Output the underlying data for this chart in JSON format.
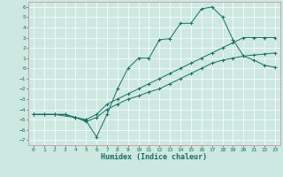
{
  "title": "",
  "xlabel": "Humidex (Indice chaleur)",
  "xlim": [
    -0.5,
    23.5
  ],
  "ylim": [
    -7.5,
    6.5
  ],
  "xticks": [
    0,
    1,
    2,
    3,
    4,
    5,
    6,
    7,
    8,
    9,
    10,
    11,
    12,
    13,
    14,
    15,
    16,
    17,
    18,
    19,
    20,
    21,
    22,
    23
  ],
  "yticks": [
    -7,
    -6,
    -5,
    -4,
    -3,
    -2,
    -1,
    0,
    1,
    2,
    3,
    4,
    5,
    6
  ],
  "bg_color": "#cce8e0",
  "grid_color": "#ffffff",
  "line_color": "#1a6e64",
  "line1_x": [
    0,
    1,
    2,
    3,
    4,
    5,
    6,
    7,
    8,
    9,
    10,
    11,
    12,
    13,
    14,
    15,
    16,
    17,
    18,
    19,
    20,
    21,
    22,
    23
  ],
  "line1_y": [
    -4.5,
    -4.5,
    -4.5,
    -4.5,
    -4.8,
    -5.0,
    -4.5,
    -3.5,
    -3.0,
    -2.5,
    -2.0,
    -1.5,
    -1.0,
    -0.5,
    0.0,
    0.5,
    1.0,
    1.5,
    2.0,
    2.5,
    3.0,
    3.0,
    3.0,
    3.0
  ],
  "line2_x": [
    0,
    1,
    2,
    3,
    4,
    5,
    6,
    7,
    8,
    9,
    10,
    11,
    12,
    13,
    14,
    15,
    16,
    17,
    18,
    19,
    20,
    21,
    22,
    23
  ],
  "line2_y": [
    -4.5,
    -4.5,
    -4.5,
    -4.5,
    -4.8,
    -5.2,
    -4.8,
    -4.0,
    -3.5,
    -3.0,
    -2.7,
    -2.3,
    -2.0,
    -1.5,
    -1.0,
    -0.5,
    0.0,
    0.5,
    0.8,
    1.0,
    1.2,
    1.3,
    1.4,
    1.5
  ],
  "line3_x": [
    0,
    2,
    4,
    5,
    6,
    7,
    8,
    9,
    10,
    11,
    12,
    13,
    14,
    15,
    16,
    17,
    18,
    19,
    20,
    21,
    22,
    23
  ],
  "line3_y": [
    -4.5,
    -4.5,
    -4.8,
    -5.1,
    -6.7,
    -4.5,
    -2.0,
    0.0,
    1.0,
    1.0,
    2.8,
    2.9,
    4.4,
    4.4,
    5.8,
    6.0,
    5.0,
    2.8,
    1.2,
    0.8,
    0.3,
    0.1
  ],
  "figsize": [
    3.2,
    2.0
  ],
  "dpi": 100,
  "tick_fontsize": 4.5,
  "label_fontsize": 6.0
}
